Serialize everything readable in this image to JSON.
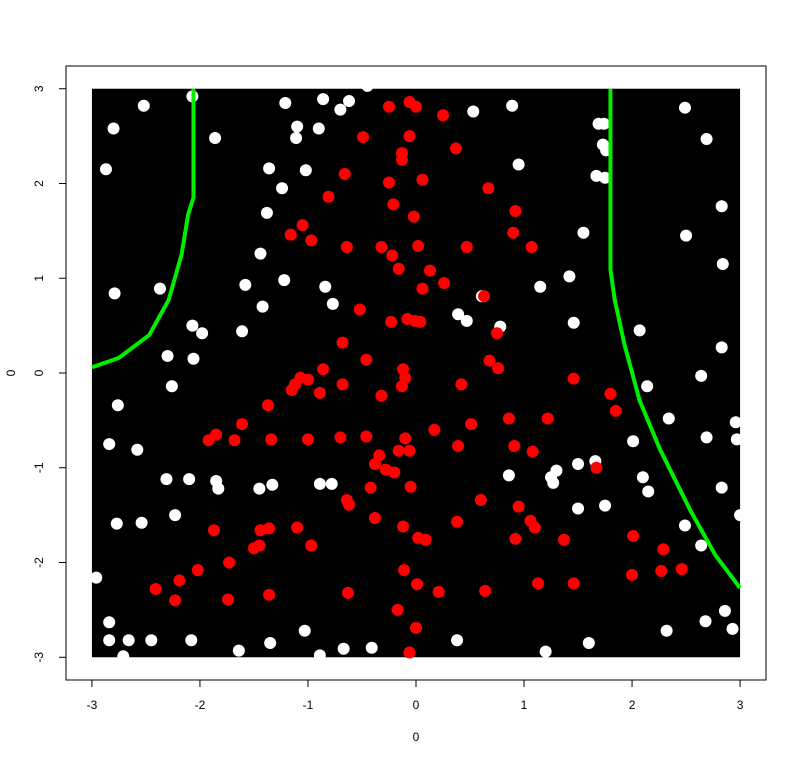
{
  "chart_data": {
    "type": "scatter",
    "xlabel": "0",
    "ylabel": "0",
    "xlim": [
      -3.24,
      3.24
    ],
    "ylim": [
      -3.24,
      3.24
    ],
    "xticks": [
      -3,
      -2,
      -1,
      0,
      1,
      2,
      3
    ],
    "yticks": [
      -3,
      -2,
      -1,
      0,
      1,
      2,
      3
    ],
    "region": {
      "x": [
        -3,
        3
      ],
      "y": [
        -3,
        3
      ],
      "color": "#000000"
    },
    "series": [
      {
        "color": "#ffffff",
        "x": [
          -2.52,
          -2.07,
          -1.21,
          -0.86,
          -0.62,
          -0.7,
          -0.45,
          -2.8,
          -1.1,
          -1.11,
          -0.9,
          -1.86,
          -2.87,
          -1.36,
          -1.02,
          -1.24,
          -1.38,
          -1.44,
          -1.22,
          -1.58,
          -1.42,
          -0.84,
          -0.77,
          -2.37,
          -2.79,
          -2.07,
          -1.98,
          -1.61,
          -2.06,
          -2.3,
          -2.26,
          -2.76,
          -2.84,
          -2.58,
          -2.31,
          -2.1,
          -1.85,
          -1.83,
          -1.45,
          -1.33,
          -0.89,
          -0.78,
          -2.23,
          -2.77,
          -2.54,
          -2.96,
          -2.84,
          -2.84,
          -2.66,
          -2.45,
          -2.08,
          -2.71,
          -1.64,
          -1.35,
          -1.03,
          -0.89,
          -0.67,
          -0.41,
          0.53,
          0.89,
          1.69,
          1.74,
          1.73,
          1.76,
          0.95,
          1.67,
          1.75,
          2.49,
          2.69,
          2.83,
          2.5,
          1.55,
          2.84,
          1.42,
          1.15,
          0.61,
          0.39,
          0.47,
          0.78,
          1.46,
          2.07,
          2.83,
          2.64,
          2.14,
          2.34,
          2.96,
          2.97,
          2.69,
          2.01,
          2.1,
          2.15,
          2.83,
          1.66,
          1.5,
          1.3,
          1.25,
          1.27,
          0.86,
          1.75,
          1.5,
          3.0,
          2.49,
          2.64,
          0.38,
          1.2,
          1.6,
          2.32,
          2.68,
          2.86,
          2.93
        ],
        "y": [
          2.82,
          2.92,
          2.85,
          2.89,
          2.87,
          2.78,
          3.03,
          2.58,
          2.6,
          2.48,
          2.58,
          2.48,
          2.15,
          2.16,
          2.14,
          1.95,
          1.69,
          1.26,
          0.98,
          0.93,
          0.7,
          0.91,
          0.73,
          0.89,
          0.84,
          0.5,
          0.42,
          0.44,
          0.15,
          0.18,
          -0.14,
          -0.34,
          -0.75,
          -0.81,
          -1.12,
          -1.12,
          -1.14,
          -1.22,
          -1.22,
          -1.18,
          -1.17,
          -1.17,
          -1.5,
          -1.59,
          -1.58,
          -2.16,
          -2.63,
          -2.82,
          -2.82,
          -2.82,
          -2.82,
          -2.99,
          -2.93,
          -2.85,
          -2.72,
          -2.98,
          -2.91,
          -2.9,
          2.76,
          2.82,
          2.63,
          2.63,
          2.41,
          2.35,
          2.2,
          2.08,
          2.06,
          2.8,
          2.47,
          1.76,
          1.45,
          1.48,
          1.15,
          1.02,
          0.91,
          0.81,
          0.62,
          0.55,
          0.49,
          0.53,
          0.45,
          0.27,
          -0.03,
          -0.14,
          -0.48,
          -0.52,
          -0.7,
          -0.68,
          -0.72,
          -1.1,
          -1.25,
          -1.21,
          -0.93,
          -0.96,
          -1.03,
          -1.1,
          -1.16,
          -1.08,
          -1.4,
          -1.43,
          -1.5,
          -1.61,
          -1.82,
          -2.82,
          -2.94,
          -2.85,
          -2.72,
          -2.62,
          -2.51,
          -2.7
        ]
      },
      {
        "color": "#ff0000",
        "x": [
          -0.25,
          -0.06,
          0.0,
          0.25,
          -0.49,
          -0.06,
          -0.13,
          0.37,
          -0.13,
          -0.66,
          -0.25,
          0.06,
          0.67,
          -0.81,
          -0.21,
          -0.02,
          0.92,
          -1.05,
          -1.16,
          -0.97,
          -0.64,
          -0.32,
          0.02,
          0.47,
          0.9,
          1.07,
          -0.22,
          -0.16,
          0.13,
          0.06,
          0.26,
          0.63,
          -0.52,
          -0.23,
          -0.08,
          -0.01,
          0.04,
          0.75,
          -0.68,
          0.68,
          -0.46,
          0.76,
          -0.12,
          -0.1,
          -0.86,
          -1.07,
          -1.0,
          -1.12,
          -1.15,
          -0.68,
          -0.13,
          -0.89,
          0.42,
          -0.32,
          -1.37,
          1.46,
          1.8,
          1.85,
          0.86,
          1.22,
          0.51,
          0.17,
          -1.61,
          -1.92,
          -1.85,
          -1.68,
          -1.34,
          -1.0,
          -0.7,
          -0.46,
          -0.1,
          -0.16,
          -0.06,
          0.39,
          0.91,
          1.08,
          -0.34,
          -0.38,
          -0.28,
          -0.2,
          -0.05,
          -0.42,
          -0.64,
          -0.62,
          0.6,
          0.95,
          1.06,
          1.1,
          1.37,
          0.92,
          0.38,
          -0.38,
          -0.12,
          0.02,
          0.09,
          -1.1,
          -1.36,
          -1.44,
          -1.87,
          -1.45,
          -1.5,
          -0.97,
          -1.73,
          -2.02,
          -0.11,
          -2.41,
          -2.19,
          -2.23,
          -1.74,
          -1.36,
          -0.63,
          0.01,
          0.21,
          0.64,
          1.13,
          1.46,
          1.67,
          2.01,
          2.29,
          2.0,
          2.27,
          2.46,
          -0.17,
          0.0,
          -0.06
        ],
        "y": [
          2.81,
          2.86,
          2.81,
          2.72,
          2.49,
          2.5,
          2.32,
          2.37,
          2.25,
          2.1,
          2.01,
          2.04,
          1.95,
          1.86,
          1.78,
          1.65,
          1.71,
          1.56,
          1.46,
          1.4,
          1.33,
          1.33,
          1.34,
          1.33,
          1.48,
          1.33,
          1.24,
          1.1,
          1.08,
          0.89,
          0.95,
          0.81,
          0.67,
          0.54,
          0.57,
          0.55,
          0.54,
          0.42,
          0.32,
          0.13,
          0.14,
          0.05,
          0.04,
          -0.05,
          0.04,
          -0.05,
          -0.07,
          -0.12,
          -0.18,
          -0.12,
          -0.14,
          -0.21,
          -0.12,
          -0.24,
          -0.34,
          -0.06,
          -0.22,
          -0.4,
          -0.48,
          -0.48,
          -0.54,
          -0.6,
          -0.54,
          -0.71,
          -0.65,
          -0.71,
          -0.7,
          -0.7,
          -0.68,
          -0.67,
          -0.69,
          -0.82,
          -0.82,
          -0.77,
          -0.77,
          -0.83,
          -0.87,
          -0.96,
          -1.02,
          -1.05,
          -1.2,
          -1.21,
          -1.34,
          -1.39,
          -1.34,
          -1.41,
          -1.56,
          -1.63,
          -1.76,
          -1.75,
          -1.57,
          -1.53,
          -1.62,
          -1.74,
          -1.76,
          -1.63,
          -1.64,
          -1.66,
          -1.66,
          -1.82,
          -1.85,
          -1.82,
          -2.0,
          -2.08,
          -2.08,
          -2.28,
          -2.19,
          -2.4,
          -2.39,
          -2.34,
          -2.32,
          -2.23,
          -2.31,
          -2.3,
          -2.22,
          -2.22,
          -1.0,
          -1.72,
          -1.86,
          -2.13,
          -2.09,
          -2.07,
          -2.5,
          -2.69,
          -2.95
        ]
      }
    ],
    "lines": [
      {
        "color": "#00ee00",
        "x": [
          -2.06,
          -2.06,
          -2.11,
          -2.17,
          -2.29,
          -2.47,
          -2.75,
          -3.0
        ],
        "y": [
          3.0,
          1.85,
          1.67,
          1.25,
          0.77,
          0.4,
          0.16,
          0.06
        ]
      },
      {
        "color": "#00ee00",
        "x": [
          1.8,
          1.8,
          1.84,
          1.93,
          2.07,
          2.26,
          2.54,
          2.77,
          3.0
        ],
        "y": [
          3.0,
          1.09,
          0.77,
          0.3,
          -0.29,
          -0.81,
          -1.45,
          -1.92,
          -2.27
        ]
      }
    ]
  }
}
